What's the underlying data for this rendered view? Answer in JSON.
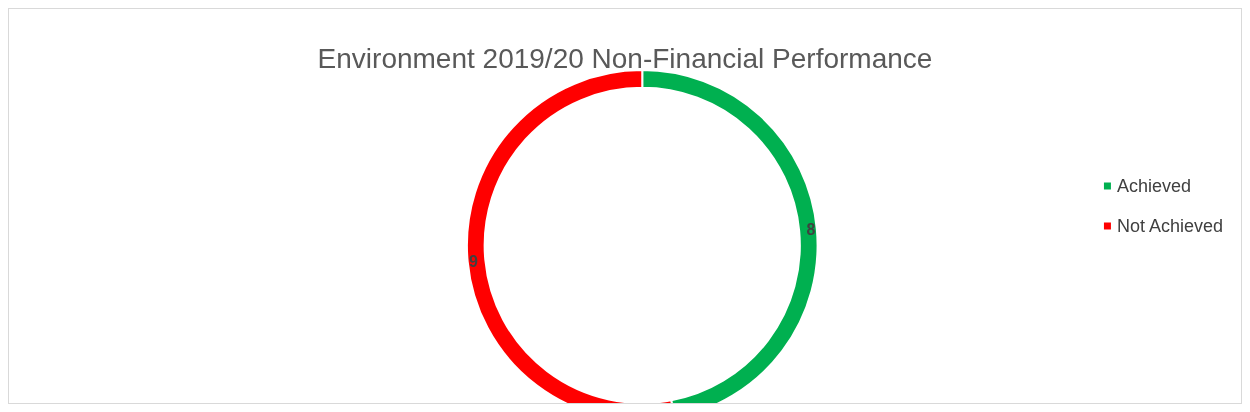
{
  "chart_data": {
    "type": "donut",
    "title": "Environment 2019/20 Non-Financial Performance",
    "categories": [
      "Achieved",
      "Not Achieved"
    ],
    "values": [
      8,
      9
    ],
    "colors": [
      "#00b050",
      "#ff0000"
    ],
    "data_labels": true,
    "legend": "right"
  }
}
